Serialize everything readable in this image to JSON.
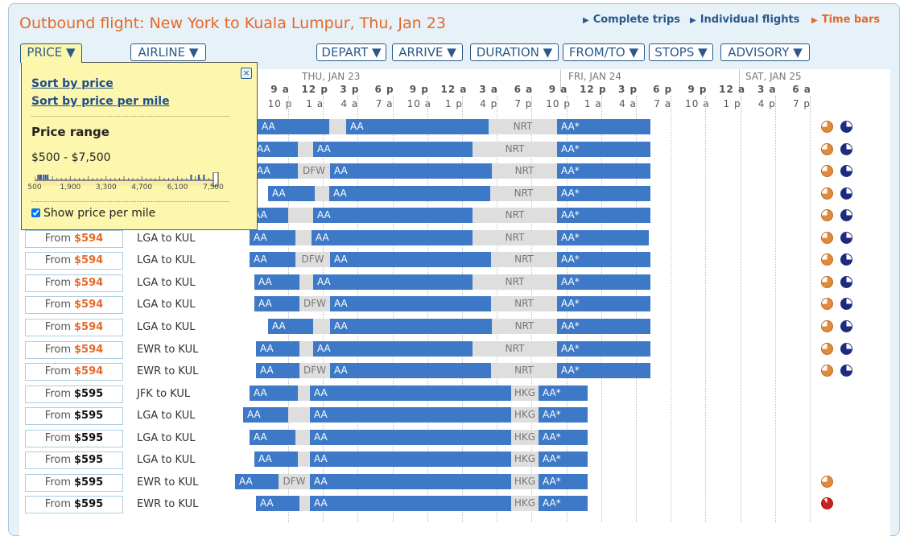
{
  "title": "Outbound flight: New York to Kuala Lumpur, Thu, Jan 23",
  "top_links": [
    "Complete trips",
    "Individual flights",
    "Time bars"
  ],
  "columns": {
    "price": "PRICE",
    "airline": "AIRLINE",
    "depart": "DEPART",
    "arrive": "ARRIVE",
    "duration": "DURATION",
    "fromto": "FROM/TO",
    "stops": "STOPS",
    "advisory": "ADVISORY"
  },
  "days": [
    "THU, JAN 23",
    "FRI, JAN 24",
    "SAT, JAN 25"
  ],
  "hours_top": [
    "9 a",
    "12 p",
    "3 p",
    "6 p",
    "9 p",
    "12 a",
    "3 a",
    "6 a",
    "9 a",
    "12 p",
    "3 p",
    "6 p",
    "9 p",
    "12 a",
    "3 a",
    "6 a"
  ],
  "hours_bottom": [
    "10 p",
    "1 a",
    "4 a",
    "7 a",
    "10 a",
    "1 p",
    "4 p",
    "7 p",
    "10 p",
    "1 a",
    "4 a",
    "7 a",
    "10 a",
    "1 p",
    "4 p",
    "7 p"
  ],
  "popup": {
    "sort_by_price": "Sort by price",
    "sort_by_price_per_mile": "Sort by price per mile",
    "range_title": "Price range",
    "range_value": "$500 - $7,500",
    "range_min": 500,
    "range_max": 7500,
    "selected_max": 7500,
    "axis_labels": [
      "500",
      "1,900",
      "3,300",
      "4,700",
      "6,100",
      "7,500"
    ],
    "show_ppm_label": "Show price per mile",
    "show_ppm_checked": true
  },
  "colors": {
    "accent": "#e4692a",
    "flight_bar": "#3d79c6",
    "layover": "#dedede",
    "link": "#2a5a8c"
  },
  "rows": [
    {
      "from": "",
      "price": "",
      "route": "",
      "segs": [
        [
          "a",
          320,
          409,
          "AA"
        ],
        [
          "l",
          409,
          430,
          ""
        ],
        [
          "a",
          430,
          607,
          "AA"
        ],
        [
          "l",
          607,
          692,
          "NRT"
        ],
        [
          "a",
          692,
          808,
          "AA*"
        ]
      ],
      "adv": [
        "orange",
        "navy"
      ]
    },
    {
      "from": "",
      "price": "",
      "route": "",
      "segs": [
        [
          "a",
          314,
          370,
          "AA"
        ],
        [
          "l",
          370,
          389,
          ""
        ],
        [
          "a",
          389,
          587,
          "AA"
        ],
        [
          "l",
          587,
          692,
          "NRT"
        ],
        [
          "a",
          692,
          808,
          "AA*"
        ]
      ],
      "adv": [
        "orange",
        "navy"
      ]
    },
    {
      "from": "",
      "price": "",
      "route": "",
      "segs": [
        [
          "a",
          314,
          370,
          "AA"
        ],
        [
          "l",
          370,
          410,
          "DFW"
        ],
        [
          "a",
          410,
          611,
          "AA"
        ],
        [
          "l",
          611,
          692,
          "NRT"
        ],
        [
          "a",
          692,
          808,
          "AA*"
        ]
      ],
      "adv": [
        "orange",
        "navy"
      ]
    },
    {
      "from": "",
      "price": "",
      "route": "",
      "segs": [
        [
          "a",
          333,
          391,
          "AA"
        ],
        [
          "l",
          391,
          409,
          ""
        ],
        [
          "a",
          409,
          609,
          "AA"
        ],
        [
          "l",
          609,
          692,
          "NRT"
        ],
        [
          "a",
          692,
          808,
          "AA*"
        ]
      ],
      "adv": [
        "orange",
        "navy"
      ]
    },
    {
      "from": "",
      "price": "",
      "route": "",
      "segs": [
        [
          "a",
          310,
          358,
          "AA"
        ],
        [
          "l",
          358,
          389,
          ""
        ],
        [
          "a",
          389,
          587,
          "AA"
        ],
        [
          "l",
          587,
          692,
          "NRT"
        ],
        [
          "a",
          692,
          808,
          "AA*"
        ]
      ],
      "adv": [
        "orange",
        "navy"
      ]
    },
    {
      "from": "From",
      "price": "$594",
      "route": "LGA to KUL",
      "segs": [
        [
          "a",
          310,
          367,
          "AA"
        ],
        [
          "l",
          367,
          387,
          ""
        ],
        [
          "a",
          387,
          587,
          "AA"
        ],
        [
          "l",
          587,
          692,
          "NRT"
        ],
        [
          "a",
          692,
          806,
          "AA*"
        ]
      ],
      "adv": [
        "orange",
        "navy"
      ]
    },
    {
      "from": "From",
      "price": "$594",
      "route": "LGA to KUL",
      "segs": [
        [
          "a",
          310,
          367,
          "AA"
        ],
        [
          "l",
          367,
          410,
          "DFW"
        ],
        [
          "a",
          410,
          610,
          "AA"
        ],
        [
          "l",
          610,
          692,
          "NRT"
        ],
        [
          "a",
          692,
          808,
          "AA*"
        ]
      ],
      "adv": [
        "orange",
        "navy"
      ]
    },
    {
      "from": "From",
      "price": "$594",
      "route": "LGA to KUL",
      "segs": [
        [
          "a",
          316,
          372,
          "AA"
        ],
        [
          "l",
          372,
          389,
          ""
        ],
        [
          "a",
          389,
          587,
          "AA"
        ],
        [
          "l",
          587,
          692,
          "NRT"
        ],
        [
          "a",
          692,
          808,
          "AA*"
        ]
      ],
      "adv": [
        "orange",
        "navy"
      ]
    },
    {
      "from": "From",
      "price": "$594",
      "route": "LGA to KUL",
      "segs": [
        [
          "a",
          316,
          372,
          "AA"
        ],
        [
          "l",
          372,
          410,
          "DFW"
        ],
        [
          "a",
          410,
          610,
          "AA"
        ],
        [
          "l",
          610,
          692,
          "NRT"
        ],
        [
          "a",
          692,
          808,
          "AA*"
        ]
      ],
      "adv": [
        "orange",
        "navy"
      ]
    },
    {
      "from": "From",
      "price": "$594",
      "route": "LGA to KUL",
      "segs": [
        [
          "a",
          333,
          389,
          "AA"
        ],
        [
          "l",
          389,
          410,
          ""
        ],
        [
          "a",
          410,
          611,
          "AA"
        ],
        [
          "l",
          611,
          692,
          "NRT"
        ],
        [
          "a",
          692,
          808,
          "AA*"
        ]
      ],
      "adv": [
        "orange",
        "navy"
      ]
    },
    {
      "from": "From",
      "price": "$594",
      "route": "EWR to KUL",
      "segs": [
        [
          "a",
          318,
          372,
          "AA"
        ],
        [
          "l",
          372,
          389,
          ""
        ],
        [
          "a",
          389,
          587,
          "AA"
        ],
        [
          "l",
          587,
          692,
          "NRT"
        ],
        [
          "a",
          692,
          808,
          "AA*"
        ]
      ],
      "adv": [
        "orange",
        "navy"
      ]
    },
    {
      "from": "From",
      "price": "$594",
      "route": "EWR to KUL",
      "segs": [
        [
          "a",
          318,
          372,
          "AA"
        ],
        [
          "l",
          372,
          410,
          "DFW"
        ],
        [
          "a",
          410,
          610,
          "AA"
        ],
        [
          "l",
          610,
          692,
          "NRT"
        ],
        [
          "a",
          692,
          808,
          "AA*"
        ]
      ],
      "adv": [
        "orange",
        "navy"
      ]
    },
    {
      "from": "From",
      "price": "$595",
      "route": "JFK to KUL",
      "segs": [
        [
          "a",
          310,
          370,
          "AA"
        ],
        [
          "l",
          370,
          385,
          ""
        ],
        [
          "a",
          385,
          635,
          "AA"
        ],
        [
          "l",
          635,
          669,
          "HKG"
        ],
        [
          "a",
          669,
          730,
          "AA*"
        ]
      ],
      "adv": []
    },
    {
      "from": "From",
      "price": "$595",
      "route": "LGA to KUL",
      "segs": [
        [
          "a",
          302,
          358,
          "AA"
        ],
        [
          "l",
          358,
          385,
          ""
        ],
        [
          "a",
          385,
          635,
          "AA"
        ],
        [
          "l",
          635,
          669,
          "HKG"
        ],
        [
          "a",
          669,
          730,
          "AA*"
        ]
      ],
      "adv": []
    },
    {
      "from": "From",
      "price": "$595",
      "route": "LGA to KUL",
      "segs": [
        [
          "a",
          310,
          367,
          "AA"
        ],
        [
          "l",
          367,
          385,
          ""
        ],
        [
          "a",
          385,
          635,
          "AA"
        ],
        [
          "l",
          635,
          669,
          "HKG"
        ],
        [
          "a",
          669,
          730,
          "AA*"
        ]
      ],
      "adv": []
    },
    {
      "from": "From",
      "price": "$595",
      "route": "LGA to KUL",
      "segs": [
        [
          "a",
          316,
          370,
          "AA"
        ],
        [
          "l",
          370,
          385,
          ""
        ],
        [
          "a",
          385,
          635,
          "AA"
        ],
        [
          "l",
          635,
          669,
          "HKG"
        ],
        [
          "a",
          669,
          730,
          "AA*"
        ]
      ],
      "adv": []
    },
    {
      "from": "From",
      "price": "$595",
      "route": "EWR to KUL",
      "segs": [
        [
          "a",
          292,
          346,
          "AA"
        ],
        [
          "l",
          346,
          385,
          "DFW"
        ],
        [
          "a",
          385,
          635,
          "AA"
        ],
        [
          "l",
          635,
          669,
          "HKG"
        ],
        [
          "a",
          669,
          730,
          "AA*"
        ]
      ],
      "adv": [
        "orange"
      ]
    },
    {
      "from": "From",
      "price": "$595",
      "route": "EWR to KUL",
      "segs": [
        [
          "a",
          318,
          372,
          "AA"
        ],
        [
          "l",
          372,
          385,
          ""
        ],
        [
          "a",
          385,
          635,
          "AA"
        ],
        [
          "l",
          635,
          669,
          "HKG"
        ],
        [
          "a",
          669,
          730,
          "AA*"
        ]
      ],
      "adv": [
        "red"
      ]
    }
  ]
}
